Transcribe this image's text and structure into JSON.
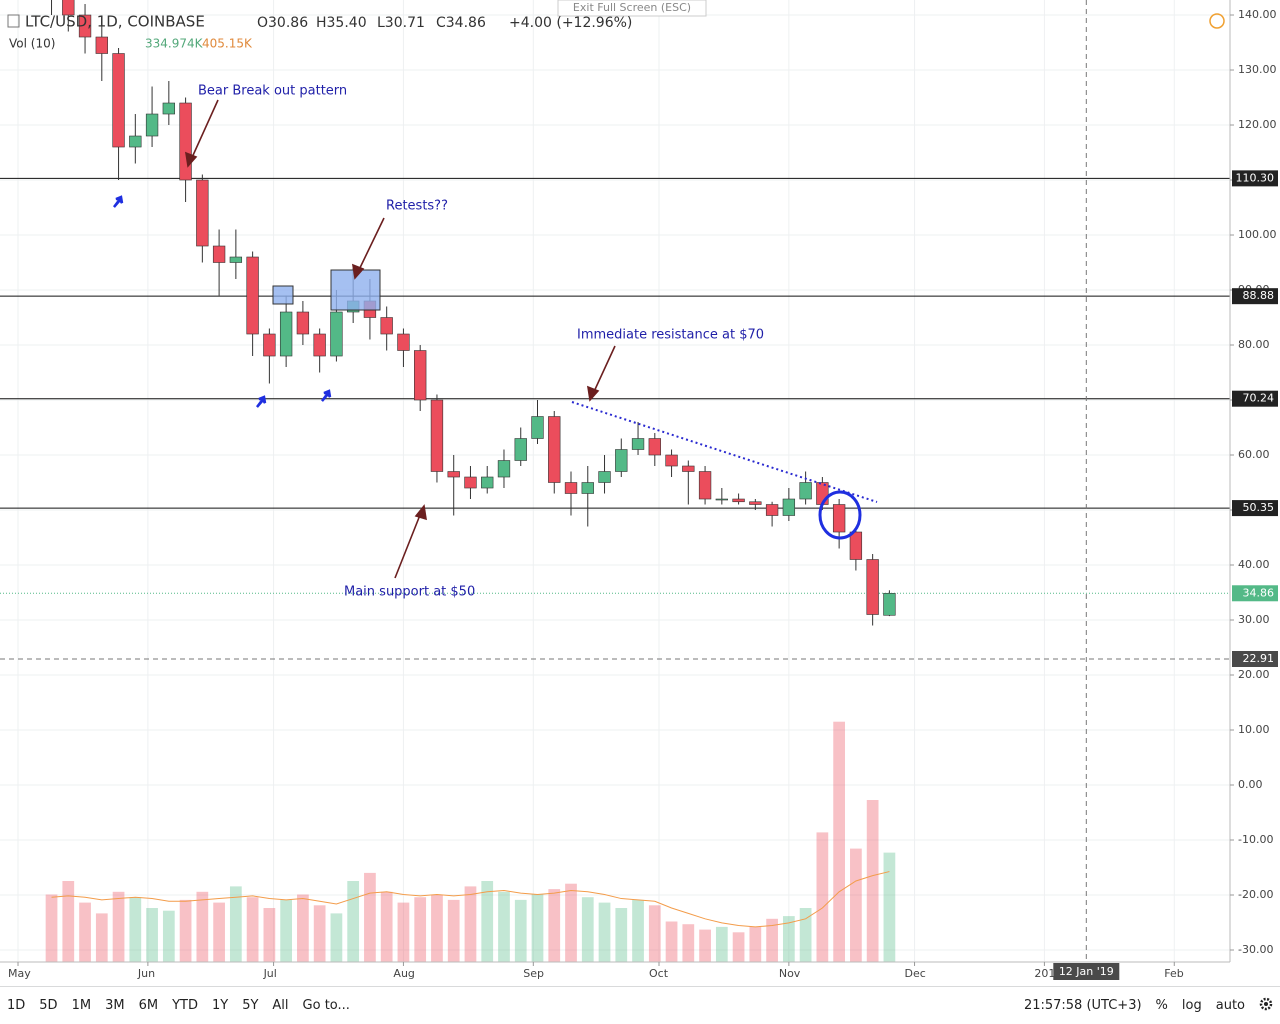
{
  "chart_data": {
    "type": "candlestick",
    "title": "LTC/USD, 1D, COINBASE",
    "ohlc_text": [
      "O30.86",
      "H35.40",
      "L30.71",
      "C34.86",
      "+4.00 (+12.96%)"
    ],
    "volume_title": "Vol (10)",
    "volume_text": [
      "334.974K",
      "405.15K"
    ],
    "exit_text": "Exit Full Screen (ESC)",
    "xlim": [
      -4.3,
      289.3
    ],
    "xticks": [
      {
        "value": 0,
        "label": "May"
      },
      {
        "value": 31,
        "label": "Jun"
      },
      {
        "value": 61,
        "label": "Jul"
      },
      {
        "value": 92,
        "label": "Aug"
      },
      {
        "value": 123,
        "label": "Sep"
      },
      {
        "value": 153,
        "label": "Oct"
      },
      {
        "value": 184,
        "label": "Nov"
      },
      {
        "value": 214,
        "label": "Dec"
      },
      {
        "value": 245,
        "label": "2019"
      },
      {
        "value": 276,
        "label": "Feb"
      }
    ],
    "ylim": [
      -32.18,
      142.73
    ],
    "yticks": [
      {
        "value": 140,
        "label": "140.00"
      },
      {
        "value": 130,
        "label": "130.00"
      },
      {
        "value": 120,
        "label": "120.00"
      },
      {
        "value": 110,
        "label": "110.00"
      },
      {
        "value": 100,
        "label": "100.00"
      },
      {
        "value": 90,
        "label": "90.00"
      },
      {
        "value": 80,
        "label": "80.00"
      },
      {
        "value": 70,
        "label": "70.00"
      },
      {
        "value": 60,
        "label": "60.00"
      },
      {
        "value": 50,
        "label": "50.00"
      },
      {
        "value": 40,
        "label": "40.00"
      },
      {
        "value": 30,
        "label": "30.00"
      },
      {
        "value": 20,
        "label": "20.00"
      },
      {
        "value": 10,
        "label": "10.00"
      },
      {
        "value": 0,
        "label": "0.00"
      },
      {
        "value": -10,
        "label": "-10.00"
      },
      {
        "value": -20,
        "label": "-20.00"
      },
      {
        "value": -30,
        "label": "-30.00"
      }
    ],
    "grid": true,
    "up_color": "#53b987",
    "down_color": "#eb4d5c",
    "x": [
      8,
      12,
      16,
      20,
      24,
      28,
      32,
      36,
      40,
      44,
      48,
      52,
      56,
      60,
      64,
      68,
      72,
      76,
      80,
      84,
      88,
      92,
      96,
      100,
      104,
      108,
      112,
      116,
      120,
      124,
      128,
      132,
      136,
      140,
      144,
      148,
      152,
      156,
      160,
      164,
      168,
      172,
      176,
      180,
      184,
      188,
      192,
      196,
      200,
      204,
      208
    ],
    "open": [
      146,
      143,
      140,
      136,
      133,
      116,
      118,
      122,
      124,
      110,
      98,
      95,
      96,
      82,
      78,
      86,
      82,
      78,
      86,
      88,
      85,
      82,
      79,
      70,
      57,
      56,
      54,
      56,
      59,
      63,
      67,
      55,
      53,
      55,
      57,
      61,
      63,
      60,
      58,
      57,
      52,
      52,
      51.5,
      51,
      49,
      52,
      55,
      51,
      46,
      41,
      30.86
    ],
    "high": [
      149,
      145,
      142,
      139,
      134,
      122,
      127,
      128,
      125,
      111,
      101,
      101,
      97,
      83,
      89,
      88,
      83,
      90,
      94,
      92,
      87,
      83,
      80,
      71,
      60,
      58,
      58,
      61,
      65,
      70,
      68,
      57,
      58,
      60,
      63,
      66,
      64,
      61,
      59,
      58,
      54,
      53,
      52,
      51.5,
      54,
      57,
      56,
      52,
      47,
      42,
      35.4
    ],
    "low": [
      140,
      137,
      133,
      128,
      110,
      113,
      116,
      120,
      106,
      95,
      89,
      92,
      78,
      73,
      76,
      80,
      75,
      77,
      84,
      81,
      79,
      76,
      68,
      55,
      49,
      52,
      53,
      54,
      58,
      62,
      53,
      49,
      47,
      53,
      56,
      60,
      58,
      56,
      51,
      51,
      51,
      51,
      50,
      47,
      48,
      51,
      50,
      43,
      39,
      29,
      30.71
    ],
    "close": [
      143,
      140,
      136,
      133,
      116,
      118,
      122,
      124,
      110,
      98,
      95,
      96,
      82,
      78,
      86,
      82,
      78,
      86,
      88,
      85,
      82,
      79,
      70,
      57,
      56,
      54,
      56,
      59,
      63,
      67,
      55,
      53,
      55,
      57,
      61,
      63,
      60,
      58,
      57,
      52,
      52,
      51.5,
      51,
      49,
      52,
      55,
      51,
      46,
      41,
      31,
      34.86
    ],
    "volume": {
      "ylim": [
        0,
        1000
      ],
      "values": [
        250,
        300,
        220,
        180,
        260,
        240,
        200,
        190,
        230,
        260,
        220,
        280,
        240,
        200,
        230,
        250,
        210,
        180,
        300,
        330,
        260,
        220,
        240,
        250,
        230,
        280,
        300,
        260,
        230,
        250,
        270,
        290,
        240,
        220,
        200,
        230,
        210,
        150,
        140,
        120,
        130,
        110,
        130,
        160,
        170,
        200,
        480,
        890,
        420,
        600,
        405.15
      ],
      "ma_color": "#f39c4a",
      "ma": [
        240,
        245,
        240,
        230,
        235,
        240,
        235,
        225,
        225,
        230,
        235,
        240,
        245,
        235,
        230,
        235,
        225,
        215,
        235,
        255,
        260,
        250,
        245,
        250,
        245,
        250,
        260,
        265,
        255,
        250,
        255,
        265,
        260,
        250,
        235,
        230,
        225,
        200,
        180,
        160,
        145,
        135,
        130,
        135,
        145,
        160,
        200,
        260,
        300,
        320,
        334.974
      ]
    },
    "levels": [
      {
        "value": 110.3,
        "label": "110.30"
      },
      88.88,
      70.24,
      50.35
    ],
    "last_price": 34.86,
    "crosshair": {
      "x": 255,
      "x_label": "12 Jan '19",
      "y": 22.91
    },
    "annotations": [
      "Bear Break out pattern",
      "Retests??",
      "Immediate resistance at $70",
      "Main support at $50"
    ],
    "toolbar": [
      "1D",
      "5D",
      "1M",
      "3M",
      "6M",
      "YTD",
      "1Y",
      "5Y",
      "All",
      "Go to..."
    ],
    "clock": "21:57:58 (UTC+3)",
    "toolbar_right": [
      "%",
      "log",
      "auto"
    ]
  }
}
